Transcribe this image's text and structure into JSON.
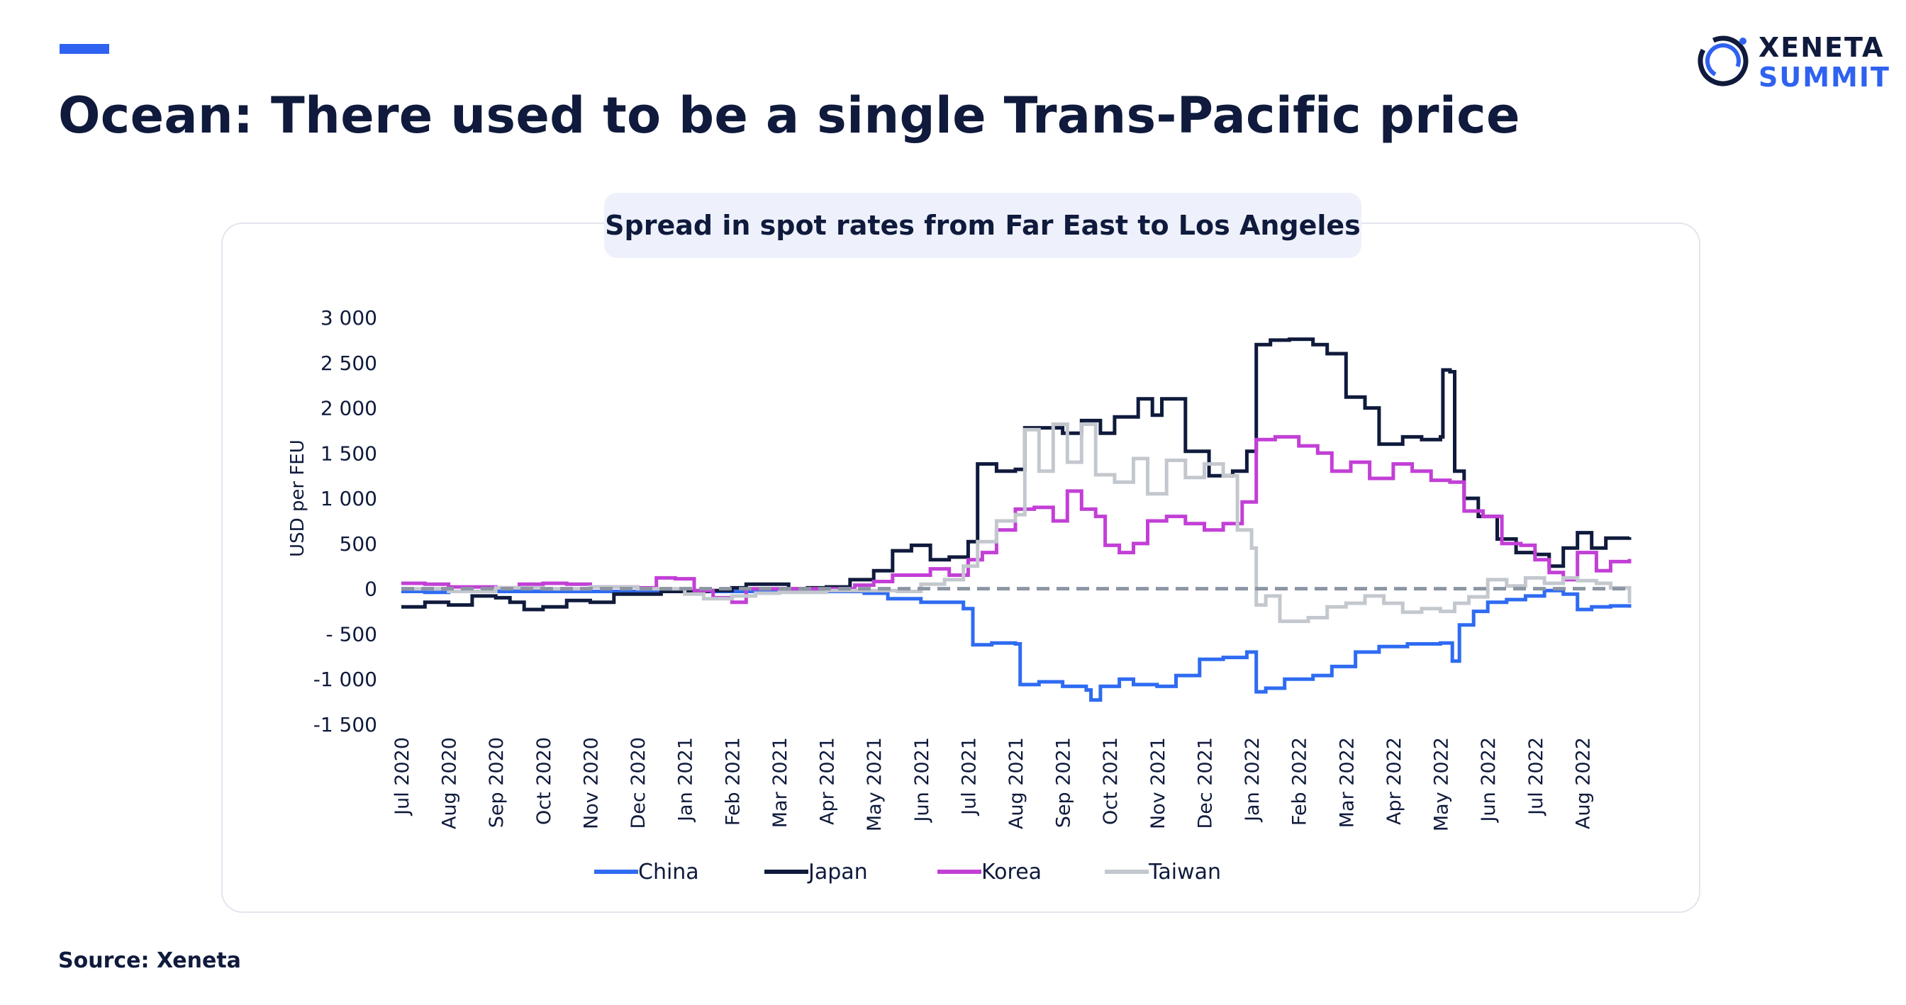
{
  "header": {
    "title": "Ocean: There used to be a single Trans-Pacific price",
    "logo_line1": "XENETA",
    "logo_line2": "SUMMIT"
  },
  "colors": {
    "navy": "#0f1a3c",
    "accent": "#2f62f0",
    "zero_line": "#8c95a3"
  },
  "footer": {
    "source": "Source: Xeneta"
  },
  "chart_data": {
    "type": "line",
    "title": "Spread in spot rates from Far East to Los Angeles",
    "ylabel": "USD per FEU",
    "xlabel": "",
    "ylim": [
      -1500,
      3000
    ],
    "yticks": [
      3000,
      2500,
      2000,
      1500,
      1000,
      500,
      0,
      -500,
      -1000,
      -1500
    ],
    "ytick_labels": [
      "3 000",
      "2 500",
      "2 000",
      "1 500",
      "1 000",
      "500",
      "0",
      "- 500",
      "-1 000",
      "-1 500"
    ],
    "xlim": [
      0,
      26
    ],
    "xticks": [
      "Jul 2020",
      "Aug 2020",
      "Sep 2020",
      "Oct 2020",
      "Nov 2020",
      "Dec 2020",
      "Jan 2021",
      "Feb 2021",
      "Mar 2021",
      "Apr 2021",
      "May 2021",
      "Jun 2021",
      "Jul 2021",
      "Aug 2021",
      "Sep 2021",
      "Oct 2021",
      "Nov 2021",
      "Dec 2021",
      "Jan 2022",
      "Feb 2022",
      "Mar 2022",
      "Apr 2022",
      "May 2022",
      "Jun 2022",
      "Jul 2022",
      "Aug 2022"
    ],
    "x_unit": "months since Jul 2020",
    "grid": false,
    "legend_position": "bottom",
    "series": [
      {
        "name": "China",
        "color": "#2f6bf2",
        "points": [
          [
            0,
            -30
          ],
          [
            0.5,
            -40
          ],
          [
            1,
            -30
          ],
          [
            2,
            -30
          ],
          [
            3,
            -30
          ],
          [
            4,
            -30
          ],
          [
            5,
            -30
          ],
          [
            6,
            -30
          ],
          [
            7,
            -30
          ],
          [
            8,
            -30
          ],
          [
            9,
            -30
          ],
          [
            9.8,
            -50
          ],
          [
            10.3,
            -110
          ],
          [
            11,
            -150
          ],
          [
            11.5,
            -150
          ],
          [
            11.9,
            -220
          ],
          [
            12.1,
            -620
          ],
          [
            12.5,
            -600
          ],
          [
            13,
            -610
          ],
          [
            13.1,
            -1060
          ],
          [
            13.5,
            -1030
          ],
          [
            14,
            -1080
          ],
          [
            14.5,
            -1120
          ],
          [
            14.6,
            -1230
          ],
          [
            14.8,
            -1080
          ],
          [
            15.2,
            -1000
          ],
          [
            15.5,
            -1060
          ],
          [
            16,
            -1080
          ],
          [
            16.4,
            -960
          ],
          [
            16.9,
            -780
          ],
          [
            17.4,
            -760
          ],
          [
            17.9,
            -700
          ],
          [
            18.1,
            -1140
          ],
          [
            18.3,
            -1100
          ],
          [
            18.7,
            -1000
          ],
          [
            19.3,
            -960
          ],
          [
            19.7,
            -860
          ],
          [
            20.2,
            -700
          ],
          [
            20.7,
            -640
          ],
          [
            21.3,
            -610
          ],
          [
            22,
            -600
          ],
          [
            22.25,
            -800
          ],
          [
            22.4,
            -400
          ],
          [
            22.7,
            -250
          ],
          [
            23,
            -150
          ],
          [
            23.4,
            -120
          ],
          [
            23.8,
            -80
          ],
          [
            24.2,
            -20
          ],
          [
            24.6,
            -60
          ],
          [
            24.9,
            -230
          ],
          [
            25.2,
            -200
          ],
          [
            25.6,
            -190
          ],
          [
            26,
            -210
          ]
        ]
      },
      {
        "name": "Japan",
        "color": "#0f1a3c",
        "points": [
          [
            0,
            -200
          ],
          [
            0.5,
            -150
          ],
          [
            1,
            -180
          ],
          [
            1.5,
            -80
          ],
          [
            2,
            -100
          ],
          [
            2.3,
            -150
          ],
          [
            2.6,
            -230
          ],
          [
            3,
            -200
          ],
          [
            3.5,
            -130
          ],
          [
            4,
            -150
          ],
          [
            4.5,
            -60
          ],
          [
            5,
            -60
          ],
          [
            5.5,
            -30
          ],
          [
            6,
            -30
          ],
          [
            6.5,
            -20
          ],
          [
            7,
            10
          ],
          [
            7.3,
            50
          ],
          [
            7.8,
            50
          ],
          [
            8.2,
            0
          ],
          [
            8.6,
            10
          ],
          [
            9,
            20
          ],
          [
            9.5,
            100
          ],
          [
            10,
            200
          ],
          [
            10.4,
            420
          ],
          [
            10.8,
            480
          ],
          [
            11.2,
            320
          ],
          [
            11.6,
            350
          ],
          [
            12,
            520
          ],
          [
            12.2,
            1380
          ],
          [
            12.6,
            1300
          ],
          [
            13,
            1320
          ],
          [
            13.2,
            1780
          ],
          [
            13.6,
            1780
          ],
          [
            14,
            1720
          ],
          [
            14.4,
            1860
          ],
          [
            14.8,
            1720
          ],
          [
            15.1,
            1900
          ],
          [
            15.6,
            2100
          ],
          [
            15.9,
            1920
          ],
          [
            16.1,
            2100
          ],
          [
            16.6,
            1520
          ],
          [
            17.1,
            1250
          ],
          [
            17.6,
            1300
          ],
          [
            17.9,
            1520
          ],
          [
            18.1,
            2700
          ],
          [
            18.4,
            2750
          ],
          [
            18.8,
            2760
          ],
          [
            19.3,
            2700
          ],
          [
            19.6,
            2600
          ],
          [
            20,
            2120
          ],
          [
            20.4,
            2000
          ],
          [
            20.7,
            1600
          ],
          [
            21.2,
            1680
          ],
          [
            21.6,
            1650
          ],
          [
            22,
            1680
          ],
          [
            22.05,
            2420
          ],
          [
            22.2,
            2400
          ],
          [
            22.3,
            1300
          ],
          [
            22.5,
            1000
          ],
          [
            22.8,
            800
          ],
          [
            23.2,
            550
          ],
          [
            23.6,
            400
          ],
          [
            24,
            380
          ],
          [
            24.3,
            250
          ],
          [
            24.6,
            450
          ],
          [
            24.9,
            620
          ],
          [
            25.2,
            450
          ],
          [
            25.5,
            560
          ],
          [
            26,
            570
          ]
        ]
      },
      {
        "name": "Korea",
        "color": "#c23fd6",
        "points": [
          [
            0,
            60
          ],
          [
            0.5,
            50
          ],
          [
            1,
            20
          ],
          [
            2,
            10
          ],
          [
            2.5,
            50
          ],
          [
            3,
            60
          ],
          [
            3.5,
            50
          ],
          [
            4,
            20
          ],
          [
            5,
            10
          ],
          [
            5.4,
            120
          ],
          [
            5.8,
            110
          ],
          [
            6.2,
            -20
          ],
          [
            6.6,
            -100
          ],
          [
            7,
            -150
          ],
          [
            7.3,
            0
          ],
          [
            8,
            0
          ],
          [
            9,
            0
          ],
          [
            9.6,
            40
          ],
          [
            10,
            80
          ],
          [
            10.4,
            150
          ],
          [
            10.8,
            150
          ],
          [
            11.2,
            220
          ],
          [
            11.6,
            150
          ],
          [
            12,
            320
          ],
          [
            12.3,
            400
          ],
          [
            12.6,
            650
          ],
          [
            13,
            880
          ],
          [
            13.4,
            900
          ],
          [
            13.8,
            750
          ],
          [
            14.1,
            1080
          ],
          [
            14.4,
            880
          ],
          [
            14.7,
            800
          ],
          [
            14.9,
            480
          ],
          [
            15.2,
            400
          ],
          [
            15.5,
            500
          ],
          [
            15.8,
            750
          ],
          [
            16.2,
            800
          ],
          [
            16.6,
            720
          ],
          [
            17,
            650
          ],
          [
            17.4,
            720
          ],
          [
            17.8,
            960
          ],
          [
            18.1,
            1650
          ],
          [
            18.5,
            1680
          ],
          [
            19,
            1580
          ],
          [
            19.4,
            1500
          ],
          [
            19.7,
            1300
          ],
          [
            20.1,
            1400
          ],
          [
            20.5,
            1220
          ],
          [
            21,
            1380
          ],
          [
            21.4,
            1300
          ],
          [
            21.8,
            1200
          ],
          [
            22.2,
            1180
          ],
          [
            22.5,
            860
          ],
          [
            22.9,
            800
          ],
          [
            23.3,
            500
          ],
          [
            23.7,
            480
          ],
          [
            24,
            320
          ],
          [
            24.3,
            180
          ],
          [
            24.6,
            100
          ],
          [
            24.9,
            400
          ],
          [
            25.3,
            200
          ],
          [
            25.6,
            300
          ],
          [
            26,
            330
          ]
        ]
      },
      {
        "name": "Taiwan",
        "color": "#c3c8ce",
        "points": [
          [
            0,
            0
          ],
          [
            1,
            -30
          ],
          [
            2,
            10
          ],
          [
            3,
            0
          ],
          [
            4,
            20
          ],
          [
            5,
            0
          ],
          [
            6,
            -60
          ],
          [
            6.4,
            -110
          ],
          [
            7,
            -80
          ],
          [
            7.5,
            -50
          ],
          [
            8,
            -40
          ],
          [
            9,
            -20
          ],
          [
            10,
            -20
          ],
          [
            10.5,
            -30
          ],
          [
            11,
            50
          ],
          [
            11.5,
            100
          ],
          [
            11.9,
            250
          ],
          [
            12.2,
            520
          ],
          [
            12.6,
            750
          ],
          [
            13,
            820
          ],
          [
            13.2,
            1760
          ],
          [
            13.5,
            1300
          ],
          [
            13.8,
            1820
          ],
          [
            14.1,
            1400
          ],
          [
            14.4,
            1820
          ],
          [
            14.7,
            1260
          ],
          [
            15.1,
            1180
          ],
          [
            15.5,
            1440
          ],
          [
            15.8,
            1050
          ],
          [
            16.2,
            1420
          ],
          [
            16.6,
            1230
          ],
          [
            17,
            1380
          ],
          [
            17.4,
            1250
          ],
          [
            17.7,
            650
          ],
          [
            18,
            450
          ],
          [
            18.1,
            -180
          ],
          [
            18.3,
            -80
          ],
          [
            18.6,
            -360
          ],
          [
            19.2,
            -320
          ],
          [
            19.6,
            -200
          ],
          [
            20,
            -160
          ],
          [
            20.4,
            -80
          ],
          [
            20.8,
            -160
          ],
          [
            21.2,
            -260
          ],
          [
            21.6,
            -220
          ],
          [
            22,
            -250
          ],
          [
            22.3,
            -160
          ],
          [
            22.6,
            -90
          ],
          [
            23,
            100
          ],
          [
            23.4,
            30
          ],
          [
            23.8,
            120
          ],
          [
            24.2,
            60
          ],
          [
            24.6,
            120
          ],
          [
            24.9,
            90
          ],
          [
            25.3,
            60
          ],
          [
            25.6,
            10
          ],
          [
            26,
            -160
          ]
        ]
      }
    ]
  }
}
